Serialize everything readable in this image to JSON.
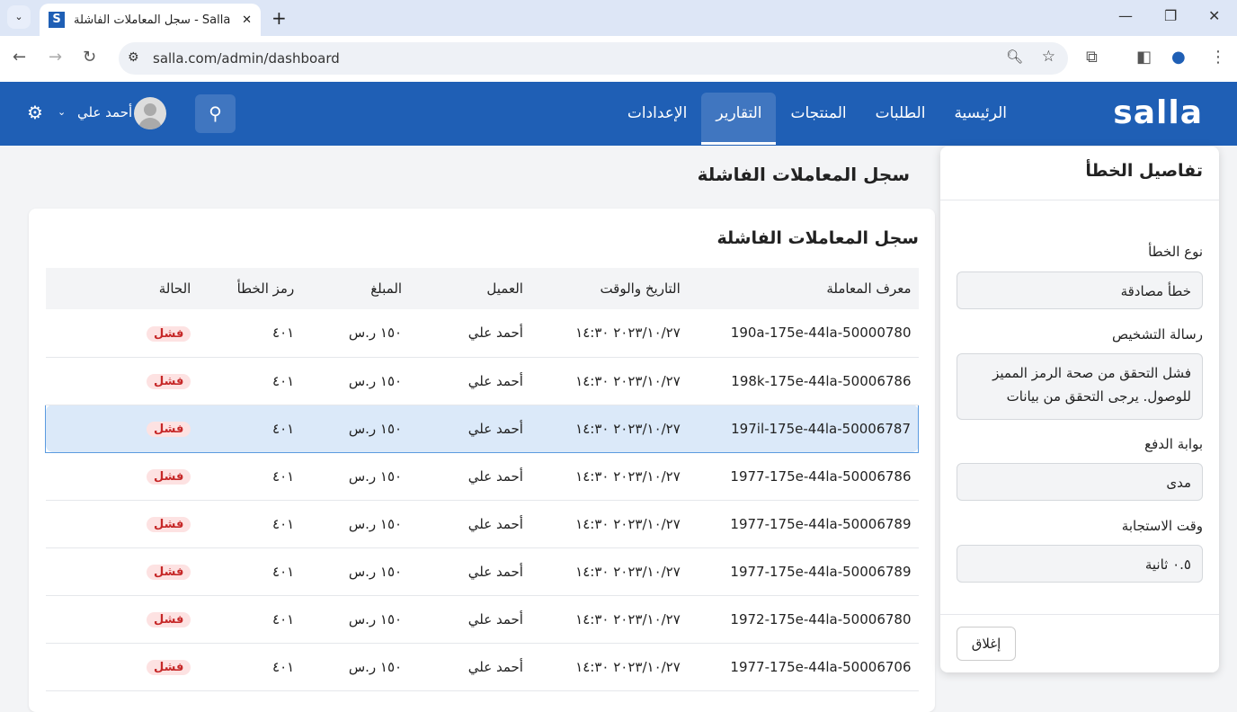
{
  "browser": {
    "tab_title": "سجل المعاملات الفاشلة - Salla",
    "favicon": "S",
    "url": "salla.com/admin/dashboard"
  },
  "header": {
    "logo": "salla",
    "nav": [
      "الرئيسية",
      "الطلبات",
      "المنتجات",
      "التقارير",
      "الإعدادات"
    ],
    "active_nav": "التقارير",
    "user": "أحمد علي"
  },
  "page": {
    "title": "سجل المعاملات الفاشلة"
  },
  "card": {
    "title": "سجل المعاملات الفاشلة",
    "columns": [
      "معرف المعاملة",
      "التاريخ والوقت",
      "العميل",
      "المبلغ",
      "رمز الخطأ",
      "الحالة"
    ],
    "rows": [
      [
        "190a-175e-44la-50000780",
        "٢٠٢٣/١٠/٢٧ ١٤:٣٠",
        "أحمد علي",
        "١٥٠ ر.س",
        "٤٠١",
        "فشل"
      ],
      [
        "198k-175e-44la-50006786",
        "٢٠٢٣/١٠/٢٧ ١٤:٣٠",
        "أحمد علي",
        "١٥٠ ر.س",
        "٤٠١",
        "فشل"
      ],
      [
        "197il-175e-44la-50006787",
        "٢٠٢٣/١٠/٢٧ ١٤:٣٠",
        "أحمد علي",
        "١٥٠ ر.س",
        "٤٠١",
        "فشل"
      ],
      [
        "1977-175e-44la-50006786",
        "٢٠٢٣/١٠/٢٧ ١٤:٣٠",
        "أحمد علي",
        "١٥٠ ر.س",
        "٤٠١",
        "فشل"
      ],
      [
        "1977-175e-44la-50006789",
        "٢٠٢٣/١٠/٢٧ ١٤:٣٠",
        "أحمد علي",
        "١٥٠ ر.س",
        "٤٠١",
        "فشل"
      ],
      [
        "1977-175e-44la-50006789",
        "٢٠٢٣/١٠/٢٧ ١٤:٣٠",
        "أحمد علي",
        "١٥٠ ر.س",
        "٤٠١",
        "فشل"
      ],
      [
        "1972-175e-44la-50006780",
        "٢٠٢٣/١٠/٢٧ ١٤:٣٠",
        "أحمد علي",
        "١٥٠ ر.س",
        "٤٠١",
        "فشل"
      ],
      [
        "1977-175e-44la-50006706",
        "٢٠٢٣/١٠/٢٧ ١٤:٣٠",
        "أحمد علي",
        "١٥٠ ر.س",
        "٤٠١",
        "فشل"
      ]
    ],
    "selected_row": 2
  },
  "panel": {
    "title": "تفاصيل الخطأ",
    "error_type_label": "نوع الخطأ",
    "error_type": "خطأ مصادقة",
    "diag_label": "رسالة التشخيص",
    "diag": "فشل التحقق من صحة الرمز المميز للوصول. يرجى التحقق من بيانات",
    "gateway_label": "بوابة الدفع",
    "gateway": "مدى",
    "resp_label": "وقت الاستجابة",
    "resp": "٠.٥ ثانية",
    "close": "إغلاق"
  },
  "colors": {
    "brand": "#1f5fb5",
    "selected_row": "#dbe9f9",
    "fail_badge": "#fde2e2"
  }
}
